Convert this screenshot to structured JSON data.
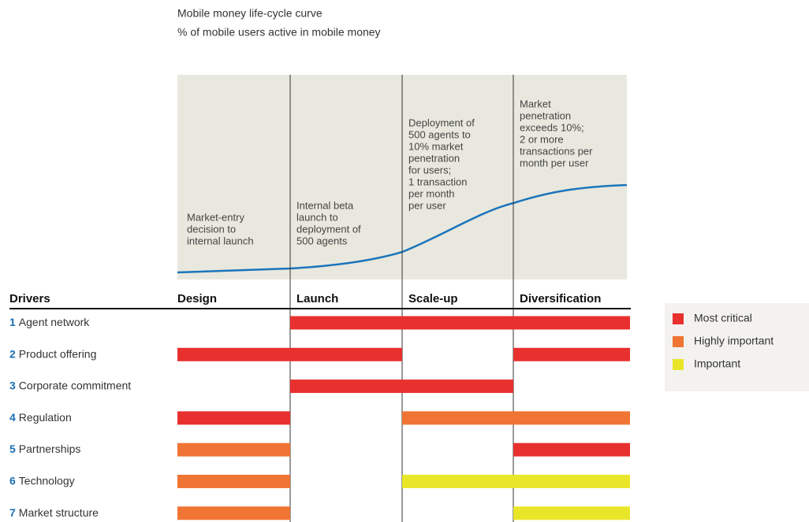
{
  "title": [
    "Mobile money life-cycle curve",
    "% of mobile users active in mobile money"
  ],
  "stages_header": "Drivers",
  "stages": [
    {
      "name": "Design",
      "annotation": [
        "Market-entry",
        "decision to",
        "internal launch"
      ]
    },
    {
      "name": "Launch",
      "annotation": [
        "Internal beta",
        "launch to",
        "deployment of",
        "500 agents"
      ]
    },
    {
      "name": "Scale-up",
      "annotation": [
        "Deployment of",
        "500 agents to",
        "10% market",
        "penetration",
        "for users;",
        "1 transaction",
        "per month",
        "per user"
      ]
    },
    {
      "name": "Diversification",
      "annotation": [
        "Market",
        "penetration",
        "exceeds 10%;",
        "2 or more",
        "transactions per",
        "month per user"
      ]
    }
  ],
  "drivers": [
    {
      "number": "1",
      "label": "Agent network",
      "cells": [
        null,
        "#e8302f",
        "#e8302f",
        "#e8302f"
      ]
    },
    {
      "number": "2",
      "label": "Product offering",
      "cells": [
        "#e8302f",
        "#e8302f",
        null,
        "#e8302f"
      ]
    },
    {
      "number": "3",
      "label": "Corporate commitment",
      "cells": [
        null,
        "#e8302f",
        "#e8302f",
        null
      ]
    },
    {
      "number": "4",
      "label": "Regulation",
      "cells": [
        "#e8302f",
        null,
        "#f07433",
        "#f07433"
      ]
    },
    {
      "number": "5",
      "label": "Partnerships",
      "cells": [
        "#f07433",
        null,
        null,
        "#e8302f"
      ]
    },
    {
      "number": "6",
      "label": "Technology",
      "cells": [
        "#f07433",
        null,
        "#e9e62a",
        "#e9e62a"
      ]
    },
    {
      "number": "7",
      "label": "Market structure",
      "cells": [
        "#f07433",
        null,
        null,
        "#e9e62a"
      ]
    }
  ],
  "legend": [
    {
      "label": "Most critical",
      "color": "#e8302f"
    },
    {
      "label": "Highly important",
      "color": "#f07433"
    },
    {
      "label": "Important",
      "color": "#e9e62a"
    }
  ]
}
